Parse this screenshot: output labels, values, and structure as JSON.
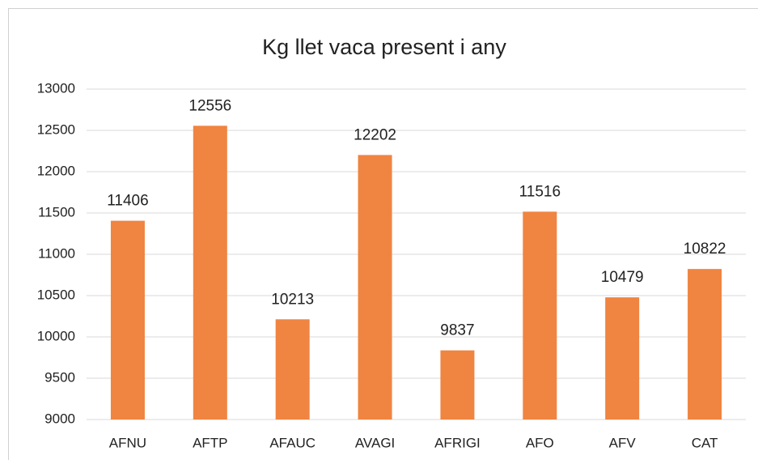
{
  "chart_data": {
    "type": "bar",
    "title": "Kg llet vaca present i any",
    "categories": [
      "AFNU",
      "AFTP",
      "AFAUC",
      "AVAGI",
      "AFRIGI",
      "AFO",
      "AFV",
      "CAT"
    ],
    "values": [
      11406,
      12556,
      10213,
      12202,
      9837,
      11516,
      10479,
      10822
    ],
    "color": "#f08441",
    "ylim": [
      9000,
      13000
    ],
    "yticks": [
      9000,
      9500,
      10000,
      10500,
      11000,
      11500,
      12000,
      12500,
      13000
    ],
    "grid": true,
    "data_labels": true
  }
}
